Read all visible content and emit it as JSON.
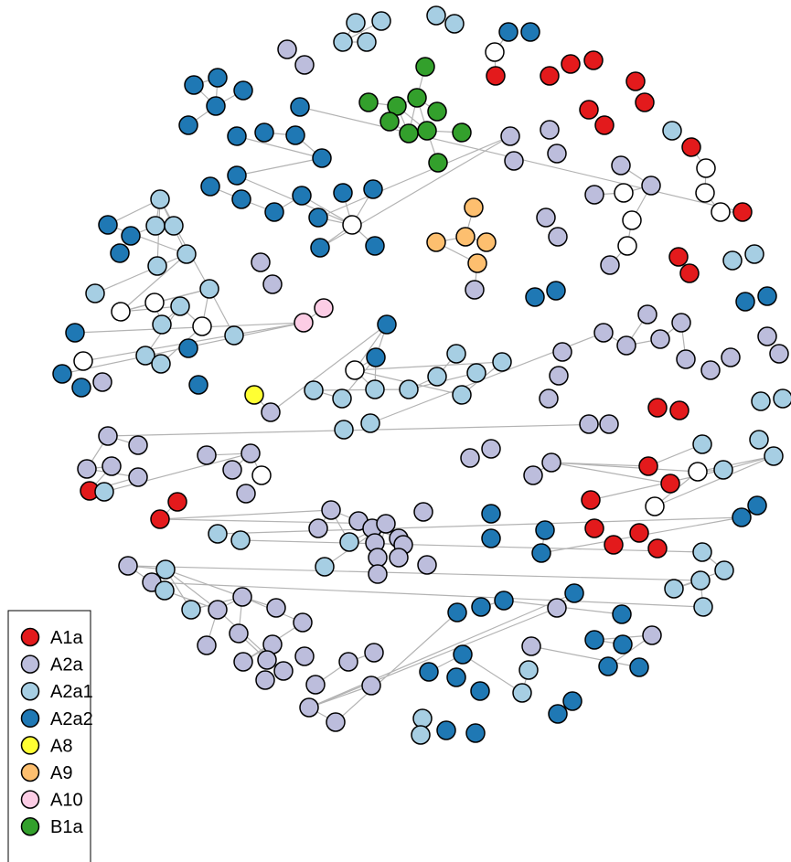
{
  "legend": {
    "items": [
      {
        "label": "A1a",
        "color": "#e31a1c"
      },
      {
        "label": "A2a",
        "color": "#bcbddc"
      },
      {
        "label": "A2a1",
        "color": "#a6cee3"
      },
      {
        "label": "A2a2",
        "color": "#1f78b4"
      },
      {
        "label": "A8",
        "color": "#ffff33"
      },
      {
        "label": "A9",
        "color": "#fdbf6f"
      },
      {
        "label": "A10",
        "color": "#fccde5"
      },
      {
        "label": "B1a",
        "color": "#33a02c"
      }
    ],
    "unassigned_color": "#ffffff"
  }
}
